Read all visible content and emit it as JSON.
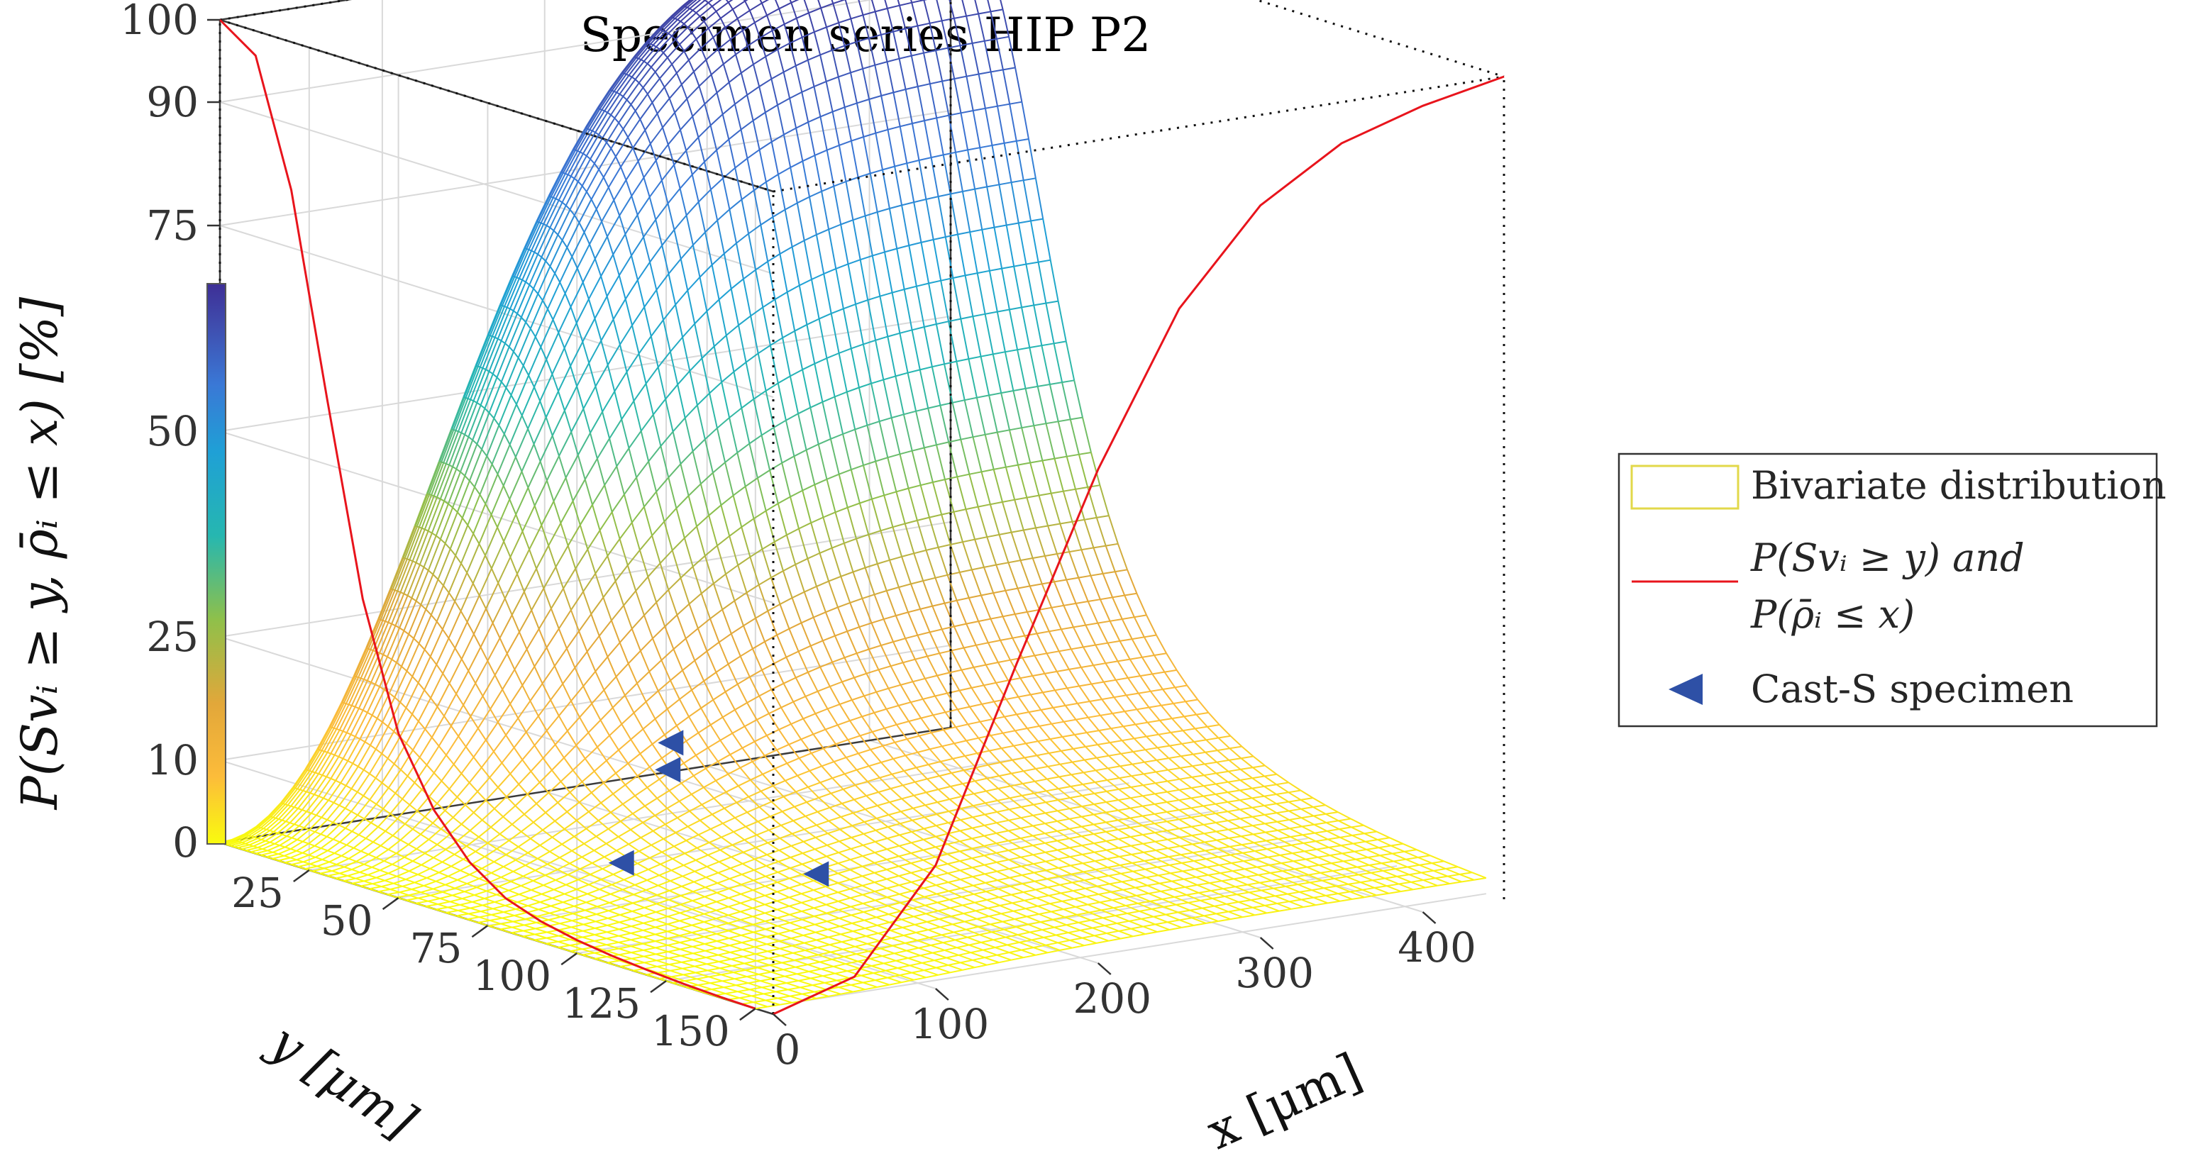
{
  "chart_data": {
    "type": "surface",
    "title": "Specimen series HIP P2",
    "xlabel": "x [μm]",
    "ylabel": "y [μm]",
    "zlabel": "P(Svᵢ ≥ y, ρ̄ᵢ ≤ x) [%]",
    "xlim": [
      0,
      450
    ],
    "ylim": [
      0,
      155
    ],
    "zlim": [
      0,
      100
    ],
    "x_ticks": [
      "0",
      "100",
      "200",
      "300",
      "400"
    ],
    "x_tick_values": [
      0,
      100,
      200,
      300,
      400
    ],
    "y_ticks": [
      "25",
      "50",
      "75",
      "100",
      "125",
      "150"
    ],
    "y_tick_values": [
      25,
      50,
      75,
      100,
      125,
      150
    ],
    "z_ticks": [
      "0",
      "10",
      "25",
      "50",
      "75",
      "90",
      "100"
    ],
    "z_tick_values": [
      0,
      10,
      25,
      50,
      75,
      90,
      100
    ],
    "grid": true,
    "colormap": [
      "#f9fb0e",
      "#fcbc3a",
      "#e2a73a",
      "#8fc04a",
      "#26b7b0",
      "#1fa0d6",
      "#3a78d6",
      "#3f4fb0",
      "#3e2f96"
    ],
    "legend_position": "right",
    "legend": [
      {
        "label": "Bivariate distribution",
        "color": "#e2d84a"
      },
      {
        "label": "P(Svᵢ ≥ y) and",
        "label2": "P(ρ̄ᵢ ≤ x)",
        "color": "#e8141c"
      },
      {
        "label": "Cast-S specimen",
        "color": "#2e50a6"
      }
    ],
    "series": [
      {
        "name": "Bivariate distribution",
        "type": "surface",
        "x_range": [
          0,
          450
        ],
        "y_range": [
          0,
          150
        ],
        "peak_z": 100
      },
      {
        "name": "P(Svᵢ ≥ y) and",
        "type": "marginal_y",
        "y": [
          0,
          10,
          20,
          30,
          40,
          50,
          60,
          70,
          80,
          90,
          100,
          110,
          120,
          130,
          140,
          150
        ],
        "z": [
          100,
          97,
          82,
          58,
          35,
          20,
          12,
          7,
          4,
          2.5,
          1.6,
          1,
          0.6,
          0.3,
          0.1,
          0
        ]
      },
      {
        "name": "P(ρ̄ᵢ ≤ x)",
        "type": "marginal_x",
        "x": [
          0,
          50,
          100,
          150,
          200,
          250,
          300,
          350,
          400,
          450
        ],
        "z": [
          0,
          3,
          15,
          38,
          60,
          78,
          89,
          95,
          98,
          100
        ]
      },
      {
        "name": "Cast-S specimen",
        "type": "scatter",
        "points": [
          {
            "x": 95,
            "y": 70,
            "z": 4
          },
          {
            "x": 150,
            "y": 58,
            "z": 12
          },
          {
            "x": 165,
            "y": 52,
            "z": 14
          },
          {
            "x": 160,
            "y": 95,
            "z": 4
          }
        ]
      }
    ]
  }
}
